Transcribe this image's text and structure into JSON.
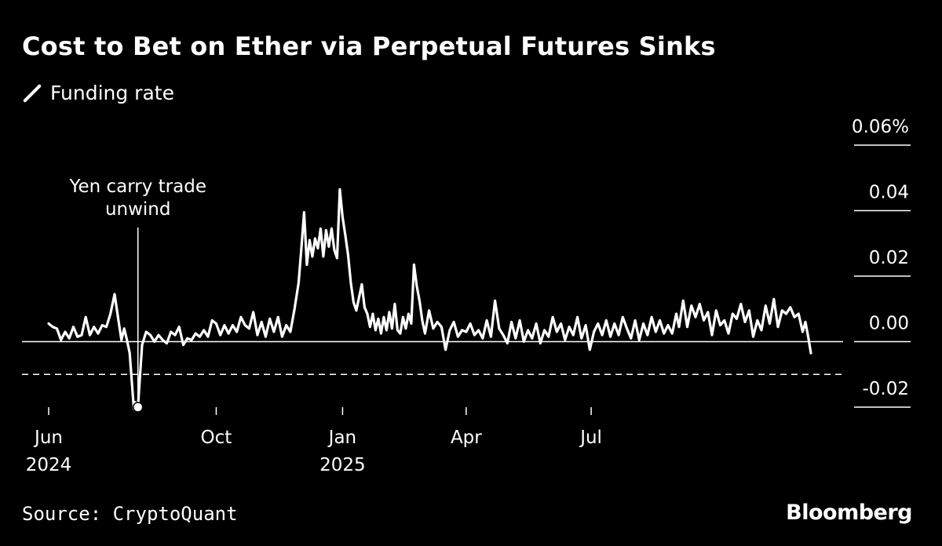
{
  "title": "Cost to Bet on Ether via Perpetual Futures Sinks",
  "source": "Source: CryptoQuant",
  "brand": "Bloomberg",
  "colors": {
    "background": "#000000",
    "line": "#ffffff",
    "text": "#ffffff"
  },
  "chart_data": {
    "type": "line",
    "legend": [
      {
        "label": "Funding rate",
        "marker": "diagonal line"
      }
    ],
    "series": [
      {
        "name": "Funding rate",
        "points": [
          [
            "2024-06-01",
            0.0055
          ],
          [
            "2024-06-04",
            0.0045
          ],
          [
            "2024-06-07",
            0.004
          ],
          [
            "2024-06-10",
            0.0005
          ],
          [
            "2024-06-13",
            0.003
          ],
          [
            "2024-06-16",
            0.001
          ],
          [
            "2024-06-19",
            0.0045
          ],
          [
            "2024-06-22",
            0.0015
          ],
          [
            "2024-06-25",
            0.002
          ],
          [
            "2024-06-28",
            0.0075
          ],
          [
            "2024-07-01",
            0.002
          ],
          [
            "2024-07-04",
            0.0045
          ],
          [
            "2024-07-07",
            0.0025
          ],
          [
            "2024-07-10",
            0.005
          ],
          [
            "2024-07-13",
            0.0045
          ],
          [
            "2024-07-16",
            0.0085
          ],
          [
            "2024-07-19",
            0.0145
          ],
          [
            "2024-07-22",
            0.006
          ],
          [
            "2024-07-24",
            0.0005
          ],
          [
            "2024-07-26",
            0.004
          ],
          [
            "2024-07-28",
            0.0005
          ],
          [
            "2024-07-30",
            -0.0035
          ],
          [
            "2024-08-02",
            -0.0205
          ],
          [
            "2024-08-03",
            -0.0185
          ],
          [
            "2024-08-05",
            -0.02
          ],
          [
            "2024-08-08",
            -0.001
          ],
          [
            "2024-08-11",
            0.003
          ],
          [
            "2024-08-14",
            0.002
          ],
          [
            "2024-08-17",
            0.0
          ],
          [
            "2024-08-20",
            0.002
          ],
          [
            "2024-08-23",
            0.0005
          ],
          [
            "2024-08-26",
            -0.0005
          ],
          [
            "2024-08-29",
            0.003
          ],
          [
            "2024-09-01",
            0.002
          ],
          [
            "2024-09-04",
            0.0045
          ],
          [
            "2024-09-07",
            -0.001
          ],
          [
            "2024-09-10",
            0.001
          ],
          [
            "2024-09-13",
            0.0005
          ],
          [
            "2024-09-16",
            0.0025
          ],
          [
            "2024-09-19",
            0.0015
          ],
          [
            "2024-09-22",
            0.0035
          ],
          [
            "2024-09-25",
            0.0015
          ],
          [
            "2024-09-28",
            0.0065
          ],
          [
            "2024-10-01",
            0.0055
          ],
          [
            "2024-10-04",
            0.002
          ],
          [
            "2024-10-07",
            0.005
          ],
          [
            "2024-10-10",
            0.0025
          ],
          [
            "2024-10-13",
            0.005
          ],
          [
            "2024-10-16",
            0.003
          ],
          [
            "2024-10-19",
            0.0075
          ],
          [
            "2024-10-22",
            0.005
          ],
          [
            "2024-10-25",
            0.004
          ],
          [
            "2024-10-28",
            0.009
          ],
          [
            "2024-10-31",
            0.002
          ],
          [
            "2024-11-03",
            0.006
          ],
          [
            "2024-11-06",
            0.0015
          ],
          [
            "2024-11-09",
            0.007
          ],
          [
            "2024-11-12",
            0.003
          ],
          [
            "2024-11-15",
            0.0075
          ],
          [
            "2024-11-18",
            0.0015
          ],
          [
            "2024-11-21",
            0.005
          ],
          [
            "2024-11-24",
            0.003
          ],
          [
            "2024-11-27",
            0.01
          ],
          [
            "2024-11-30",
            0.018
          ],
          [
            "2024-12-02",
            0.0285
          ],
          [
            "2024-12-04",
            0.0395
          ],
          [
            "2024-12-06",
            0.0235
          ],
          [
            "2024-12-08",
            0.031
          ],
          [
            "2024-12-10",
            0.026
          ],
          [
            "2024-12-12",
            0.0315
          ],
          [
            "2024-12-14",
            0.0285
          ],
          [
            "2024-12-16",
            0.0345
          ],
          [
            "2024-12-18",
            0.026
          ],
          [
            "2024-12-20",
            0.034
          ],
          [
            "2024-12-22",
            0.029
          ],
          [
            "2024-12-24",
            0.0345
          ],
          [
            "2024-12-26",
            0.028
          ],
          [
            "2024-12-28",
            0.0255
          ],
          [
            "2024-12-30",
            0.0465
          ],
          [
            "2025-01-01",
            0.038
          ],
          [
            "2025-01-03",
            0.0325
          ],
          [
            "2025-01-05",
            0.0265
          ],
          [
            "2025-01-07",
            0.018
          ],
          [
            "2025-01-09",
            0.012
          ],
          [
            "2025-01-11",
            0.0095
          ],
          [
            "2025-01-13",
            0.0135
          ],
          [
            "2025-01-15",
            0.0175
          ],
          [
            "2025-01-17",
            0.0105
          ],
          [
            "2025-01-19",
            0.0085
          ],
          [
            "2025-01-21",
            0.0045
          ],
          [
            "2025-01-23",
            0.0085
          ],
          [
            "2025-01-25",
            0.0035
          ],
          [
            "2025-01-27",
            0.007
          ],
          [
            "2025-01-29",
            0.0025
          ],
          [
            "2025-01-31",
            0.0075
          ],
          [
            "2025-02-02",
            0.0035
          ],
          [
            "2025-02-04",
            0.009
          ],
          [
            "2025-02-06",
            0.004
          ],
          [
            "2025-02-08",
            0.0115
          ],
          [
            "2025-02-10",
            0.0035
          ],
          [
            "2025-02-12",
            0.0025
          ],
          [
            "2025-02-14",
            0.0075
          ],
          [
            "2025-02-16",
            0.004
          ],
          [
            "2025-02-18",
            0.0085
          ],
          [
            "2025-02-20",
            0.0055
          ],
          [
            "2025-02-22",
            0.0235
          ],
          [
            "2025-02-24",
            0.017
          ],
          [
            "2025-02-26",
            0.0125
          ],
          [
            "2025-02-28",
            0.0065
          ],
          [
            "2025-03-02",
            0.0025
          ],
          [
            "2025-03-05",
            0.0095
          ],
          [
            "2025-03-08",
            0.004
          ],
          [
            "2025-03-11",
            0.006
          ],
          [
            "2025-03-14",
            0.0045
          ],
          [
            "2025-03-17",
            -0.0025
          ],
          [
            "2025-03-20",
            0.0035
          ],
          [
            "2025-03-23",
            0.006
          ],
          [
            "2025-03-26",
            0.0015
          ],
          [
            "2025-03-29",
            0.0035
          ],
          [
            "2025-04-01",
            0.003
          ],
          [
            "2025-04-04",
            0.0055
          ],
          [
            "2025-04-07",
            0.002
          ],
          [
            "2025-04-10",
            0.0035
          ],
          [
            "2025-04-13",
            0.001
          ],
          [
            "2025-04-16",
            0.0065
          ],
          [
            "2025-04-19",
            0.0015
          ],
          [
            "2025-04-22",
            0.0125
          ],
          [
            "2025-04-25",
            0.004
          ],
          [
            "2025-04-28",
            0.002
          ],
          [
            "2025-05-01",
            -0.0005
          ],
          [
            "2025-05-04",
            0.006
          ],
          [
            "2025-05-07",
            0.001
          ],
          [
            "2025-05-10",
            0.0065
          ],
          [
            "2025-05-13",
            0.0
          ],
          [
            "2025-05-16",
            0.0035
          ],
          [
            "2025-05-19",
            0.001
          ],
          [
            "2025-05-22",
            0.0055
          ],
          [
            "2025-05-25",
            -0.0005
          ],
          [
            "2025-05-28",
            0.0035
          ],
          [
            "2025-05-31",
            0.0015
          ],
          [
            "2025-06-03",
            0.0075
          ],
          [
            "2025-06-06",
            0.003
          ],
          [
            "2025-06-09",
            0.0055
          ],
          [
            "2025-06-12",
            0.0005
          ],
          [
            "2025-06-15",
            0.0045
          ],
          [
            "2025-06-18",
            0.002
          ],
          [
            "2025-06-21",
            0.0075
          ],
          [
            "2025-06-24",
            0.001
          ],
          [
            "2025-06-27",
            0.005
          ],
          [
            "2025-06-30",
            -0.0025
          ],
          [
            "2025-07-03",
            0.003
          ],
          [
            "2025-07-06",
            0.0055
          ],
          [
            "2025-07-09",
            0.002
          ],
          [
            "2025-07-12",
            0.0065
          ],
          [
            "2025-07-15",
            0.0015
          ],
          [
            "2025-07-18",
            0.0055
          ],
          [
            "2025-07-21",
            0.002
          ],
          [
            "2025-07-24",
            0.0075
          ],
          [
            "2025-07-27",
            0.004
          ],
          [
            "2025-07-30",
            0.001
          ],
          [
            "2025-08-02",
            0.0065
          ],
          [
            "2025-08-05",
            0.0005
          ],
          [
            "2025-08-08",
            0.0055
          ],
          [
            "2025-08-11",
            0.002
          ],
          [
            "2025-08-14",
            0.0075
          ],
          [
            "2025-08-17",
            0.003
          ],
          [
            "2025-08-20",
            0.0065
          ],
          [
            "2025-08-23",
            0.0025
          ],
          [
            "2025-08-26",
            0.005
          ],
          [
            "2025-08-29",
            0.0025
          ],
          [
            "2025-09-01",
            0.0085
          ],
          [
            "2025-09-03",
            0.0045
          ],
          [
            "2025-09-06",
            0.0125
          ],
          [
            "2025-09-09",
            0.0045
          ],
          [
            "2025-09-12",
            0.011
          ],
          [
            "2025-09-15",
            0.0075
          ],
          [
            "2025-09-18",
            0.0115
          ],
          [
            "2025-09-21",
            0.0065
          ],
          [
            "2025-09-24",
            0.009
          ],
          [
            "2025-09-27",
            0.002
          ],
          [
            "2025-09-30",
            0.0095
          ],
          [
            "2025-10-03",
            0.005
          ],
          [
            "2025-10-06",
            0.0065
          ],
          [
            "2025-10-09",
            0.0025
          ],
          [
            "2025-10-12",
            0.0085
          ],
          [
            "2025-10-15",
            0.007
          ],
          [
            "2025-10-18",
            0.0115
          ],
          [
            "2025-10-21",
            0.006
          ],
          [
            "2025-10-24",
            0.0095
          ],
          [
            "2025-10-27",
            0.0015
          ],
          [
            "2025-10-30",
            0.0065
          ],
          [
            "2025-11-02",
            0.0035
          ],
          [
            "2025-11-05",
            0.011
          ],
          [
            "2025-11-08",
            0.0055
          ],
          [
            "2025-11-11",
            0.013
          ],
          [
            "2025-11-14",
            0.0045
          ],
          [
            "2025-11-17",
            0.0095
          ],
          [
            "2025-11-20",
            0.0085
          ],
          [
            "2025-11-23",
            0.0105
          ],
          [
            "2025-11-26",
            0.0075
          ],
          [
            "2025-11-29",
            0.0085
          ],
          [
            "2025-12-02",
            0.003
          ],
          [
            "2025-12-04",
            0.006
          ],
          [
            "2025-12-06",
            0.0015
          ],
          [
            "2025-12-08",
            -0.0035
          ]
        ]
      }
    ],
    "x_ticks": [
      {
        "date": "2024-06-01",
        "label": "Jun",
        "year": "2024"
      },
      {
        "date": "2024-10-01",
        "label": "Oct",
        "year": ""
      },
      {
        "date": "2025-01-01",
        "label": "Jan",
        "year": "2025"
      },
      {
        "date": "2025-04-01",
        "label": "Apr",
        "year": ""
      },
      {
        "date": "2025-07-01",
        "label": "Jul",
        "year": ""
      }
    ],
    "x_range": [
      "2024-06-01",
      "2025-12-12"
    ],
    "y_ticks": [
      {
        "value": 0.06,
        "label": "0.06%"
      },
      {
        "value": 0.04,
        "label": "0.04"
      },
      {
        "value": 0.02,
        "label": "0.02"
      },
      {
        "value": 0.0,
        "label": "0.00"
      },
      {
        "value": -0.02,
        "label": "-0.02"
      }
    ],
    "ylim": [
      -0.02,
      0.06
    ],
    "reference_lines": [
      {
        "value": 0.0,
        "style": "solid"
      },
      {
        "value": -0.01,
        "style": "dashed"
      }
    ],
    "annotations": [
      {
        "label_lines": [
          "Yen carry trade",
          "unwind"
        ],
        "date": "2024-08-05",
        "value": -0.02
      }
    ]
  }
}
